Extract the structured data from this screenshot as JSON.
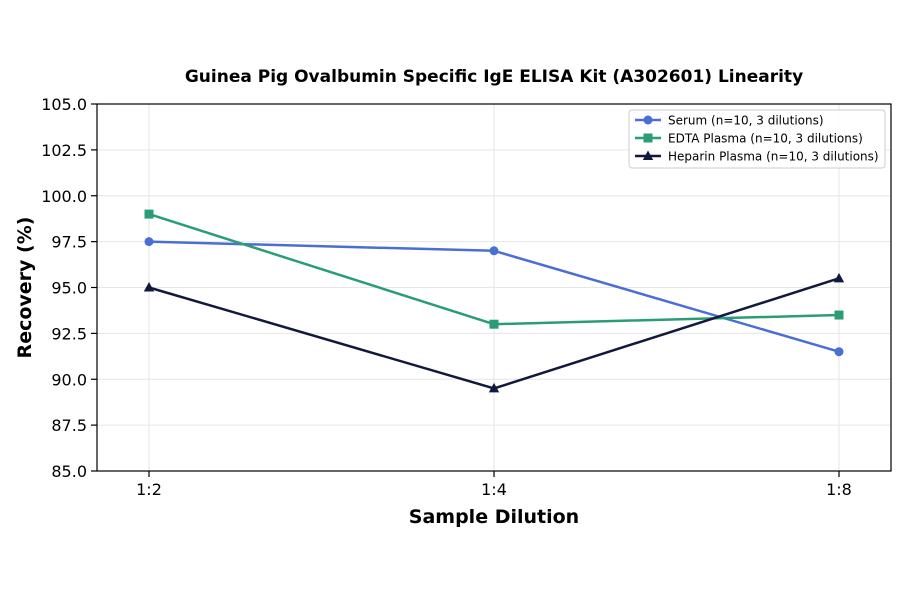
{
  "chart_data": {
    "type": "line",
    "title": "Guinea Pig Ovalbumin Specific IgE ELISA Kit (A302601) Linearity",
    "xlabel": "Sample Dilution",
    "ylabel": "Recovery (%)",
    "categories": [
      "1:2",
      "1:4",
      "1:8"
    ],
    "ylim": [
      85.0,
      105.0
    ],
    "yticks": [
      "85.0",
      "87.5",
      "90.0",
      "92.5",
      "95.0",
      "97.5",
      "100.0",
      "102.5",
      "105.0"
    ],
    "grid": true,
    "legend_position": "top-right",
    "series": [
      {
        "name": "Serum (n=10, 3 dilutions)",
        "values": [
          97.5,
          97.0,
          91.5
        ],
        "color": "#4a6fd4",
        "marker": "circle"
      },
      {
        "name": "EDTA Plasma (n=10, 3 dilutions)",
        "values": [
          99.0,
          93.0,
          93.5
        ],
        "color": "#2a9d74",
        "marker": "square"
      },
      {
        "name": "Heparin Plasma (n=10, 3 dilutions)",
        "values": [
          95.0,
          89.5,
          95.5
        ],
        "color": "#111a3d",
        "marker": "triangle"
      }
    ]
  }
}
